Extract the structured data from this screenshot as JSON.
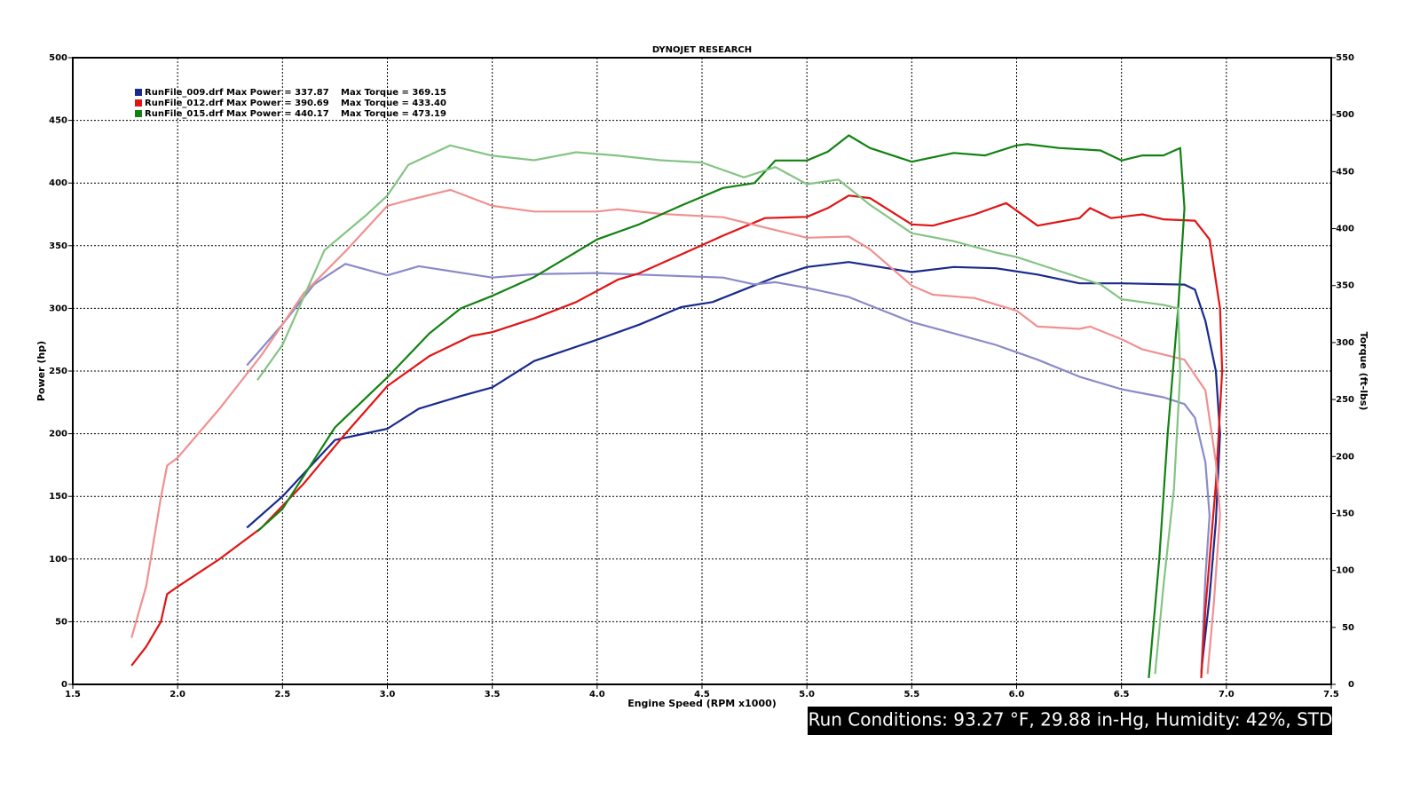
{
  "chart_data": {
    "type": "line",
    "title": "DYNOJET RESEARCH",
    "x_label": "Engine Speed (RPM x1000)",
    "y_label": "Power (hp)",
    "y2_label": "Torque (ft-lbs)",
    "annotation": "Run Conditions: 93.27 °F, 29.88 in-Hg,  Humidity:  42%, STD",
    "xlim": [
      1.5,
      7.5
    ],
    "xticks": [
      1.5,
      {
        "value": 2,
        "label": "2.0"
      },
      2.5,
      {
        "value": 3,
        "label": "3.0"
      },
      3.5,
      {
        "value": 4,
        "label": "4.0"
      },
      4.5,
      {
        "value": 5,
        "label": "5.0"
      },
      5.5,
      {
        "value": 6,
        "label": "6.0"
      },
      6.5,
      {
        "value": 7,
        "label": "7.0"
      },
      7.5
    ],
    "ylim": [
      0,
      500
    ],
    "yticks": [
      0,
      50,
      100,
      150,
      200,
      250,
      300,
      350,
      400,
      450,
      500
    ],
    "y2lim": [
      0,
      550
    ],
    "y2ticks": [
      0,
      50,
      100,
      150,
      200,
      250,
      300,
      350,
      400,
      450,
      500,
      550
    ],
    "grid": true,
    "legend": "upper left",
    "series": [
      {
        "name": "RunFile_009.drf Max Power = 337.87",
        "color": "#1a2a8c",
        "x": [
          2.33,
          2.5,
          2.75,
          3.0,
          3.15,
          3.35,
          3.5,
          3.7,
          4.0,
          4.2,
          4.4,
          4.55,
          4.7,
          4.85,
          5.0,
          5.2,
          5.5,
          5.7,
          5.9,
          6.1,
          6.3,
          6.5,
          6.8,
          6.85,
          6.9,
          6.95,
          6.97,
          6.95,
          6.92,
          6.88
        ],
        "values": [
          125,
          150,
          195,
          204,
          220,
          230,
          237,
          258,
          275,
          287,
          301,
          305,
          315,
          325,
          333,
          337,
          329,
          333,
          332,
          327,
          320,
          320,
          319,
          315,
          290,
          250,
          200,
          130,
          70,
          10
        ]
      },
      {
        "name": "Max Torque = 369.15",
        "color": "#8a8ac8",
        "axis": "y2",
        "x": [
          2.33,
          2.5,
          2.65,
          2.8,
          3.0,
          3.15,
          3.5,
          3.7,
          4.0,
          4.3,
          4.6,
          4.75,
          4.85,
          5.0,
          5.2,
          5.5,
          5.7,
          5.9,
          6.1,
          6.3,
          6.5,
          6.7,
          6.8,
          6.85,
          6.9,
          6.92,
          6.9,
          6.88
        ],
        "values": [
          280,
          316,
          351,
          369,
          359,
          367,
          357,
          360,
          361,
          359,
          357,
          351,
          353,
          348,
          340,
          318,
          308,
          298,
          285,
          270,
          259,
          252,
          246,
          234,
          195,
          148,
          94,
          9
        ]
      },
      {
        "name": "RunFile_012.drf Max Power = 390.69",
        "color": "#e01414",
        "x": [
          1.78,
          1.85,
          1.92,
          1.95,
          2.0,
          2.2,
          2.4,
          2.6,
          2.8,
          3.0,
          3.2,
          3.4,
          3.5,
          3.7,
          3.9,
          4.1,
          4.2,
          4.4,
          4.6,
          4.8,
          5.0,
          5.1,
          5.2,
          5.3,
          5.5,
          5.6,
          5.8,
          5.95,
          6.1,
          6.3,
          6.35,
          6.45,
          6.6,
          6.7,
          6.85,
          6.92,
          6.97,
          6.98,
          6.95,
          6.9,
          6.88
        ],
        "values": [
          15,
          30,
          50,
          72,
          78,
          100,
          125,
          160,
          200,
          238,
          262,
          278,
          281,
          292,
          305,
          323,
          328,
          343,
          358,
          372,
          373,
          380,
          390,
          388,
          367,
          366,
          375,
          384,
          366,
          372,
          380,
          372,
          375,
          371,
          370,
          355,
          300,
          250,
          160,
          60,
          5
        ]
      },
      {
        "name": "Max Torque = 433.40",
        "color": "#f09090",
        "axis": "y2",
        "x": [
          1.78,
          1.85,
          1.92,
          1.95,
          2.0,
          2.2,
          2.4,
          2.6,
          2.8,
          3.0,
          3.1,
          3.3,
          3.5,
          3.7,
          4.0,
          4.1,
          4.3,
          4.6,
          4.8,
          5.0,
          5.2,
          5.3,
          5.5,
          5.6,
          5.8,
          6.0,
          6.1,
          6.3,
          6.35,
          6.5,
          6.6,
          6.8,
          6.9,
          6.95,
          6.97,
          6.94,
          6.91
        ],
        "values": [
          41,
          86,
          164,
          192,
          199,
          242,
          289,
          343,
          380,
          420,
          425,
          434,
          420,
          415,
          415,
          417,
          413,
          410,
          401,
          392,
          393,
          382,
          350,
          342,
          339,
          328,
          314,
          312,
          314,
          303,
          294,
          285,
          258,
          195,
          149,
          71,
          9
        ]
      },
      {
        "name": "RunFile_015.drf Max Power = 440.17",
        "color": "#128212",
        "x": [
          2.38,
          2.5,
          2.75,
          3.0,
          3.2,
          3.35,
          3.5,
          3.7,
          3.9,
          4.0,
          4.2,
          4.4,
          4.6,
          4.75,
          4.85,
          5.0,
          5.1,
          5.2,
          5.3,
          5.5,
          5.7,
          5.85,
          6.0,
          6.05,
          6.2,
          6.4,
          6.5,
          6.6,
          6.7,
          6.78,
          6.8,
          6.77,
          6.72,
          6.68,
          6.63
        ],
        "values": [
          122,
          140,
          205,
          245,
          280,
          300,
          310,
          325,
          345,
          355,
          367,
          382,
          396,
          400,
          418,
          418,
          425,
          438,
          428,
          417,
          424,
          422,
          430,
          431,
          428,
          426,
          418,
          422,
          422,
          428,
          380,
          300,
          200,
          100,
          5
        ]
      },
      {
        "name": "Max Torque = 473.19",
        "color": "#84c484",
        "axis": "y2",
        "x": [
          2.38,
          2.5,
          2.7,
          2.9,
          3.0,
          3.1,
          3.3,
          3.5,
          3.7,
          3.9,
          4.1,
          4.3,
          4.5,
          4.7,
          4.85,
          5.0,
          5.15,
          5.3,
          5.5,
          5.7,
          5.9,
          6.0,
          6.2,
          6.4,
          6.5,
          6.7,
          6.77,
          6.78,
          6.75,
          6.7,
          6.66
        ],
        "values": [
          267,
          298,
          381,
          412,
          429,
          456,
          473,
          464,
          460,
          467,
          464,
          460,
          458,
          445,
          454,
          439,
          443,
          421,
          396,
          389,
          379,
          375,
          363,
          351,
          338,
          333,
          330,
          273,
          172,
          86,
          9
        ]
      }
    ]
  }
}
